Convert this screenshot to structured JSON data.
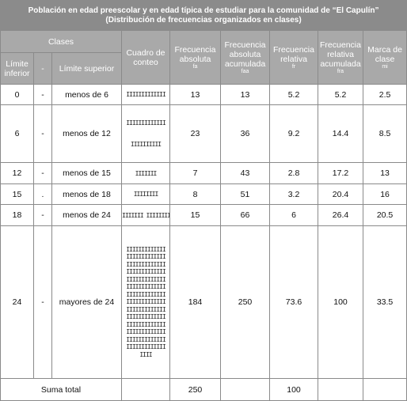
{
  "title": {
    "line1": "Población en edad preescolar y  en edad típica de estudiar para la comunidad de “El Capulín”",
    "line2": "(Distribución de frecuencias organizados en clases)"
  },
  "headers": {
    "clases": "Clases",
    "limite_inferior": "Límite inferior",
    "dash": "-",
    "limite_superior": "Límite superior",
    "cuadro": "Cuadro de conteo",
    "fa": "Frecuencia absoluta",
    "fa_sym": "fa",
    "faa": "Frecuencia absoluta acumulada",
    "faa_sym": "faa",
    "fr": "Frecuencia relativa",
    "fr_sym": "fr",
    "fra": "Frecuencia relativa acumulada",
    "fra_sym": "fra",
    "mc": "Marca de clase",
    "mc_sym": "mi"
  },
  "rows": [
    {
      "inf": "0",
      "sep": "-",
      "sup": "menos de 6",
      "tally": [
        "IIIIIIIIIIIII"
      ],
      "fa": "13",
      "faa": "13",
      "fr": "5.2",
      "fra": "5.2",
      "mc": "2.5"
    },
    {
      "inf": "6",
      "sep": "-",
      "sup": "menos de 12",
      "tally": [
        "IIIIIIIIIIIII",
        "IIIIIIIIII"
      ],
      "fa": "23",
      "faa": "36",
      "fr": "9.2",
      "fra": "14.4",
      "mc": "8.5"
    },
    {
      "inf": "12",
      "sep": "-",
      "sup": "menos de 15",
      "tally": [
        "IIIIIII"
      ],
      "fa": "7",
      "faa": "43",
      "fr": "2.8",
      "fra": "17.2",
      "mc": "13"
    },
    {
      "inf": "15",
      "sep": ".",
      "sup": "menos de 18",
      "tally": [
        "IIIIIIII"
      ],
      "fa": "8",
      "faa": "51",
      "fr": "3.2",
      "fra": "20.4",
      "mc": "16"
    },
    {
      "inf": "18",
      "sep": "-",
      "sup": "menos de 24",
      "tally": [
        "IIIIIII IIIIIIII"
      ],
      "fa": "15",
      "faa": "66",
      "fr": "6",
      "fra": "26.4",
      "mc": "20.5"
    },
    {
      "inf": "24",
      "sep": "-",
      "sup": "mayores de 24",
      "tally": [
        "IIIIIIIIIIIII",
        "IIIIIIIIIIIII",
        "IIIIIIIIIIIII",
        "IIIIIIIIIIIII",
        "IIIIIIIIIIIII",
        "IIIIIIIIIIIII",
        "IIIIIIIIIIIII",
        "IIIIIIIIIIIII",
        "IIIIIIIIIIIII",
        "IIIIIIIIIIIII",
        "IIIIIIIIIIIII",
        "IIIIIIIIIIIII",
        "IIIIIIIIIIIII",
        "IIIIIIIIIIIII",
        "IIII"
      ],
      "fa": "184",
      "faa": "250",
      "fr": "73.6",
      "fra": "100",
      "mc": "33.5"
    }
  ],
  "totals": {
    "label": "Suma total",
    "fa": "250",
    "fr": "100"
  }
}
